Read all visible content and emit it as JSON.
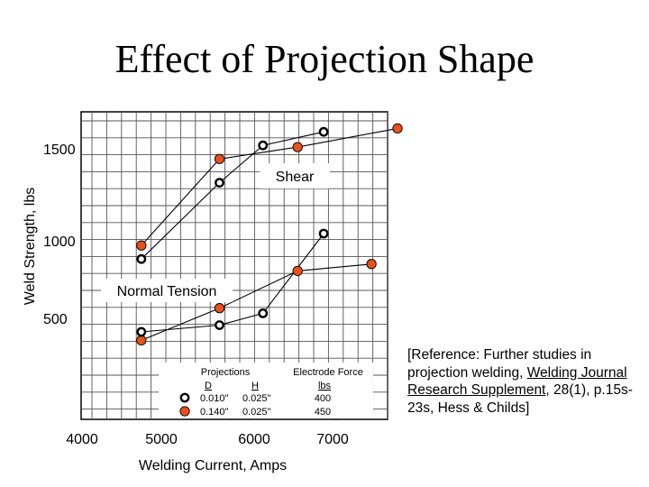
{
  "slide": {
    "title": "Effect of Projection Shape"
  },
  "chart_data": {
    "type": "line",
    "title": "Effect of Projection Shape",
    "xlabel": "Welding Current, Amps",
    "ylabel": "Weld Strength, lbs",
    "xlim": [
      4000,
      7300
    ],
    "ylim": [
      200,
      1650
    ],
    "x_ticks": [
      "4000",
      "5000",
      "6000",
      "7000"
    ],
    "y_ticks": [
      "500",
      "1000",
      "1500"
    ],
    "grid": true,
    "annotations": [
      "Shear",
      "Normal Tension"
    ],
    "series": [
      {
        "group": "Shear",
        "marker": "filled-orange",
        "color": "#e8501c",
        "points": [
          [
            4600,
            930
          ],
          [
            5500,
            1440
          ],
          [
            6400,
            1510
          ],
          [
            7550,
            1620
          ]
        ]
      },
      {
        "group": "Shear",
        "marker": "open-circle",
        "color": "#000000",
        "points": [
          [
            4600,
            850
          ],
          [
            5500,
            1300
          ],
          [
            6000,
            1520
          ],
          [
            6700,
            1600
          ]
        ]
      },
      {
        "group": "Normal Tension",
        "marker": "filled-orange",
        "color": "#e8501c",
        "points": [
          [
            4600,
            370
          ],
          [
            5500,
            560
          ],
          [
            6400,
            780
          ],
          [
            7250,
            820
          ]
        ]
      },
      {
        "group": "Normal Tension",
        "marker": "open-circle",
        "color": "#000000",
        "points": [
          [
            4600,
            420
          ],
          [
            5500,
            460
          ],
          [
            6000,
            530
          ],
          [
            6700,
            1000
          ]
        ]
      }
    ],
    "legend": {
      "header_projections": "Projections",
      "header_d": "D",
      "header_h": "H",
      "header_force": "Electrode Force",
      "header_lbs": "lbs",
      "rows": [
        {
          "marker": "open-circle",
          "d": "0.010\"",
          "h": "0.025\"",
          "force": "400"
        },
        {
          "marker": "filled-orange",
          "d": "0.140\"",
          "h": "0.025\"",
          "force": "450"
        }
      ]
    }
  },
  "reference": {
    "prefix": "[Reference:  Further studies in projection welding, ",
    "journal": "Welding Journal Research Supplement",
    "suffix": ", 28(1), p.15s-23s, Hess & Childs]"
  }
}
